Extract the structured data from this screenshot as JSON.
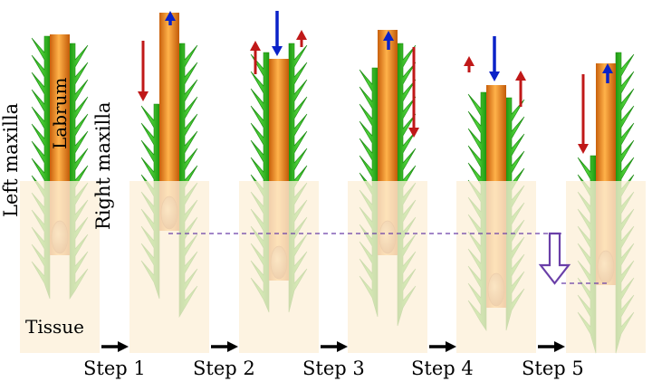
{
  "labels": {
    "left_maxilla": "Left maxilla",
    "labrum": "Labrum",
    "right_maxilla": "Right maxilla",
    "tissue": "Tissue"
  },
  "steps": [
    "Step 1",
    "Step 2",
    "Step 3",
    "Step 4",
    "Step 5"
  ],
  "colors": {
    "tissue": "#fdf0d8",
    "maxilla": "#2cb51c",
    "labrum": "#f08a1e",
    "arrow_up_down_blue": "#0a22c8",
    "arrow_red": "#c01818",
    "depth_line": "#6a3fa8",
    "step_arrow": "#000000"
  }
}
